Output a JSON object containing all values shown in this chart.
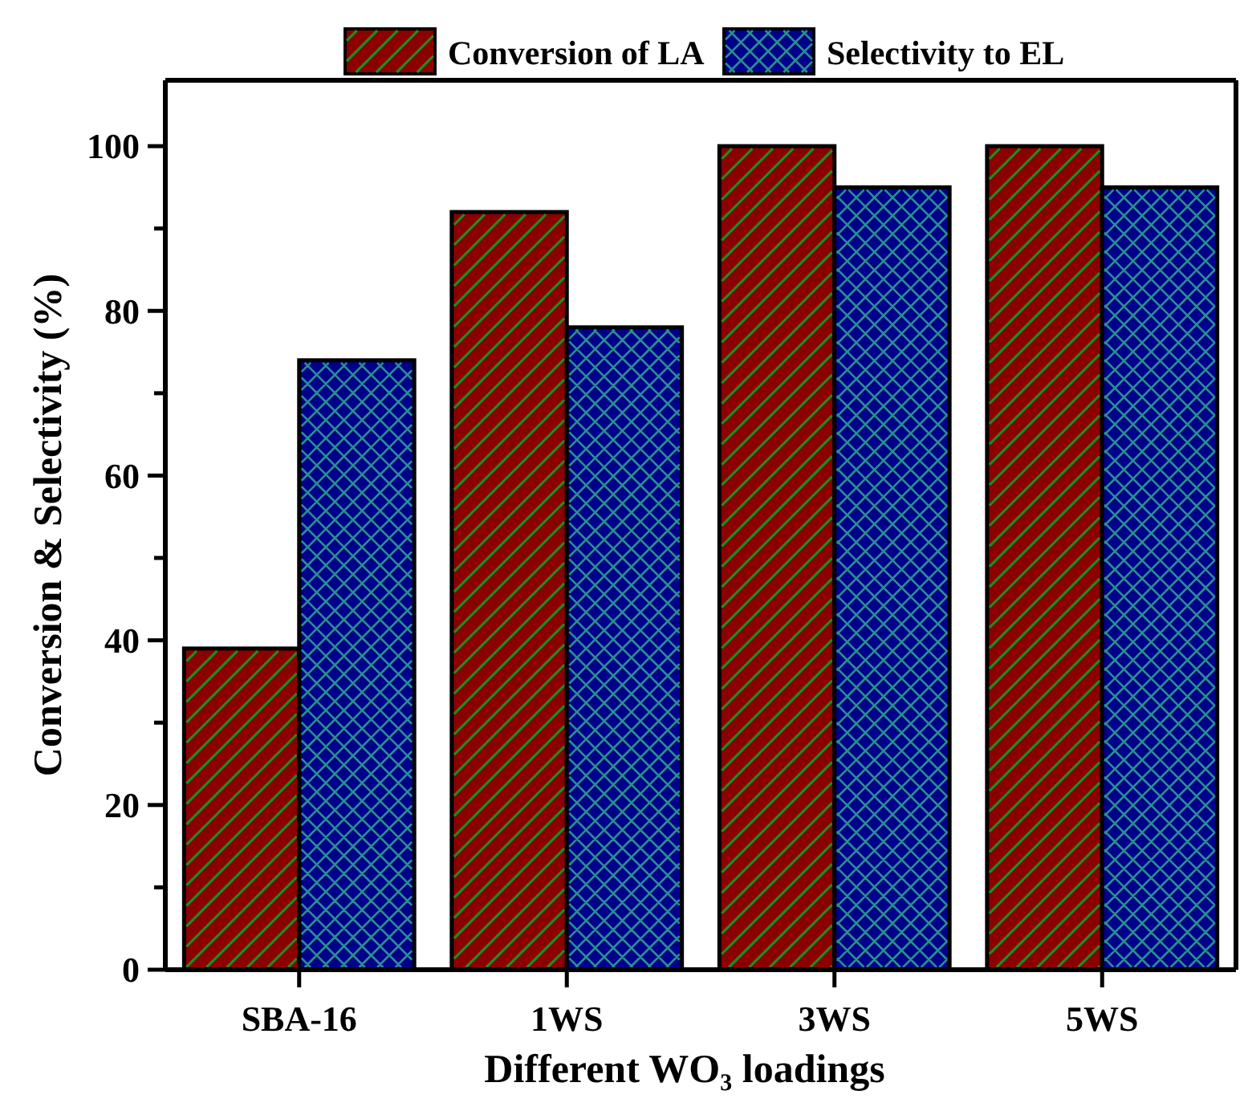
{
  "chart_data": {
    "type": "bar",
    "xlabel": "Different WO₃ loadings",
    "ylabel": "Conversion & Selectivity (%)",
    "categories": [
      "SBA-16",
      "1WS",
      "3WS",
      "5WS"
    ],
    "series": [
      {
        "name": "Conversion of LA",
        "color": "#8b0000",
        "values": [
          39,
          92,
          100,
          100
        ]
      },
      {
        "name": "Selectivity to EL",
        "color": "#00008b",
        "values": [
          74,
          78,
          95,
          95
        ]
      }
    ],
    "ylim": [
      0,
      108
    ],
    "yticks": [
      0,
      {
        "value": 10,
        "label": null
      },
      20,
      {
        "value": 30,
        "label": null
      },
      40,
      {
        "value": 50,
        "label": null
      },
      60,
      {
        "value": 70,
        "label": null
      },
      80,
      {
        "value": 90,
        "label": null
      },
      100
    ],
    "grid": false,
    "legend": "top"
  }
}
